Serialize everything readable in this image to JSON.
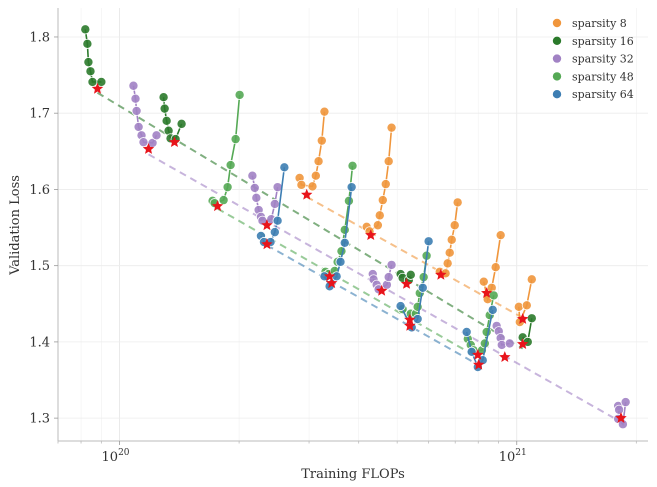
{
  "chart_data": {
    "type": "scatter",
    "title": "",
    "xlabel": "Training FLOPs",
    "ylabel": "Validation Loss",
    "x_scale": "log",
    "xlim": [
      7e+19,
      2.14e+21
    ],
    "ylim": [
      1.27,
      1.838
    ],
    "grid": true,
    "legend_placement": "top-right",
    "x_ticks": [
      {
        "value": 1e+20,
        "base": "10",
        "exp": "20"
      },
      {
        "value": 1e+21,
        "base": "10",
        "exp": "21"
      }
    ],
    "y_ticks": [
      {
        "value": 1.3,
        "label": "1.3"
      },
      {
        "value": 1.4,
        "label": "1.4"
      },
      {
        "value": 1.5,
        "label": "1.5"
      },
      {
        "value": 1.6,
        "label": "1.6"
      },
      {
        "value": 1.7,
        "label": "1.7"
      },
      {
        "value": 1.8,
        "label": "1.8"
      }
    ],
    "optimum_marker_color": "#e8141b",
    "series": [
      {
        "name": "sparsity 8",
        "color": "#f0963c",
        "sweeps": [
          {
            "points": [
              [
                2.84e+20,
                1.615
              ],
              [
                2.87e+20,
                1.606
              ],
              [
                3.06e+20,
                1.604
              ],
              [
                3.12e+20,
                1.618
              ],
              [
                3.17e+20,
                1.637
              ],
              [
                3.23e+20,
                1.664
              ],
              [
                3.28e+20,
                1.702
              ]
            ],
            "optimum": [
              2.96e+20,
              1.593
            ]
          },
          {
            "points": [
              [
                4.19e+20,
                1.551
              ],
              [
                4.26e+20,
                1.545
              ],
              [
                4.47e+20,
                1.553
              ],
              [
                4.52e+20,
                1.566
              ],
              [
                4.6e+20,
                1.586
              ],
              [
                4.68e+20,
                1.607
              ],
              [
                4.76e+20,
                1.637
              ],
              [
                4.84e+20,
                1.681
              ]
            ],
            "optimum": [
              4.29e+20,
              1.54
            ]
          },
          {
            "points": [
              [
                6.4e+20,
                1.492
              ],
              [
                6.62e+20,
                1.49
              ],
              [
                6.7e+20,
                1.503
              ],
              [
                6.78e+20,
                1.517
              ],
              [
                6.86e+20,
                1.534
              ],
              [
                6.98e+20,
                1.553
              ],
              [
                7.1e+20,
                1.583
              ]
            ],
            "optimum": [
              6.44e+20,
              1.488
            ]
          },
          {
            "points": [
              [
                8.26e+20,
                1.479
              ],
              [
                8.45e+20,
                1.456
              ],
              [
                8.65e+20,
                1.471
              ],
              [
                8.85e+20,
                1.498
              ],
              [
                9.11e+20,
                1.54
              ]
            ],
            "optimum": [
              8.4e+20,
              1.464
            ]
          },
          {
            "points": [
              [
                1.012e+21,
                1.446
              ],
              [
                1.018e+21,
                1.426
              ],
              [
                1.06e+21,
                1.448
              ],
              [
                1.091e+21,
                1.482
              ]
            ],
            "optimum": [
              1.035e+21,
              1.43
            ]
          }
        ]
      },
      {
        "name": "sparsity 16",
        "color": "#2b7a2b",
        "sweeps": [
          {
            "points": [
              [
                8.2e+19,
                1.81
              ],
              [
                8.3e+19,
                1.791
              ],
              [
                8.35e+19,
                1.767
              ],
              [
                8.45e+19,
                1.755
              ],
              [
                8.55e+19,
                1.741
              ],
              [
                9e+19,
                1.741
              ]
            ],
            "optimum": [
              8.8e+19,
              1.732
            ]
          },
          {
            "points": [
              [
                1.291e+20,
                1.721
              ],
              [
                1.299e+20,
                1.706
              ],
              [
                1.314e+20,
                1.69
              ],
              [
                1.329e+20,
                1.677
              ],
              [
                1.344e+20,
                1.667
              ],
              [
                1.384e+20,
                1.666
              ],
              [
                1.433e+20,
                1.686
              ]
            ],
            "optimum": [
              1.375e+20,
              1.662
            ]
          },
          {
            "points": [
              [
                5.1e+20,
                1.489
              ],
              [
                5.16e+20,
                1.484
              ],
              [
                5.35e+20,
                1.481
              ],
              [
                5.41e+20,
                1.488
              ]
            ],
            "optimum": [
              5.28e+20,
              1.476
            ]
          },
          {
            "points": [
              [
                1.035e+21,
                1.406
              ],
              [
                1.066e+21,
                1.4
              ],
              [
                1.091e+21,
                1.431
              ]
            ],
            "optimum": [
              1.035e+21,
              1.397
            ]
          }
        ]
      },
      {
        "name": "sparsity 32",
        "color": "#a182c4",
        "sweeps": [
          {
            "points": [
              [
                1.084e+20,
                1.736
              ],
              [
                1.097e+20,
                1.719
              ],
              [
                1.104e+20,
                1.703
              ],
              [
                1.117e+20,
                1.682
              ],
              [
                1.136e+20,
                1.671
              ],
              [
                1.149e+20,
                1.662
              ],
              [
                1.211e+20,
                1.661
              ],
              [
                1.239e+20,
                1.671
              ]
            ],
            "optimum": [
              1.183e+20,
              1.653
            ]
          },
          {
            "points": [
              [
                2.16e+20,
                1.618
              ],
              [
                2.19e+20,
                1.602
              ],
              [
                2.21e+20,
                1.589
              ],
              [
                2.24e+20,
                1.573
              ],
              [
                2.27e+20,
                1.564
              ],
              [
                2.29e+20,
                1.559
              ],
              [
                2.41e+20,
                1.561
              ],
              [
                2.46e+20,
                1.581
              ],
              [
                2.5e+20,
                1.603
              ]
            ],
            "optimum": [
              2.35e+20,
              1.553
            ]
          },
          {
            "points": [
              [
                4.34e+20,
                1.489
              ],
              [
                4.36e+20,
                1.482
              ],
              [
                4.44e+20,
                1.475
              ],
              [
                4.49e+20,
                1.469
              ],
              [
                4.71e+20,
                1.475
              ],
              [
                4.76e+20,
                1.485
              ],
              [
                4.84e+20,
                1.501
              ]
            ],
            "optimum": [
              4.57e+20,
              1.467
            ]
          },
          {
            "points": [
              [
                8.9e+20,
                1.421
              ],
              [
                9.01e+20,
                1.414
              ],
              [
                9.11e+20,
                1.405
              ],
              [
                9.17e+20,
                1.396
              ],
              [
                9.6e+20,
                1.398
              ]
            ],
            "optimum": [
              9.33e+20,
              1.38
            ]
          },
          {
            "points": [
              [
                1.8e+21,
                1.316
              ],
              [
                1.81e+21,
                1.311
              ],
              [
                1.8e+21,
                1.299
              ],
              [
                1.85e+21,
                1.292
              ],
              [
                1.88e+21,
                1.321
              ]
            ],
            "optimum": [
              1.83e+21,
              1.3
            ]
          }
        ]
      },
      {
        "name": "sparsity 48",
        "color": "#55a955",
        "sweeps": [
          {
            "points": [
              [
                1.715e+20,
                1.585
              ],
              [
                1.735e+20,
                1.582
              ],
              [
                1.828e+20,
                1.586
              ],
              [
                1.871e+20,
                1.603
              ],
              [
                1.904e+20,
                1.632
              ],
              [
                1.96e+20,
                1.666
              ],
              [
                2.006e+20,
                1.724
              ]
            ],
            "optimum": [
              1.765e+20,
              1.578
            ]
          },
          {
            "points": [
              [
                3.3e+20,
                1.492
              ],
              [
                3.36e+20,
                1.489
              ],
              [
                3.48e+20,
                1.493
              ],
              [
                3.54e+20,
                1.505
              ],
              [
                3.62e+20,
                1.519
              ],
              [
                3.69e+20,
                1.547
              ],
              [
                3.78e+20,
                1.585
              ],
              [
                3.86e+20,
                1.631
              ]
            ],
            "optimum": [
              3.38e+20,
              1.486
            ]
          },
          {
            "points": [
              [
                5.16e+20,
                1.443
              ],
              [
                5.41e+20,
                1.437
              ],
              [
                5.57e+20,
                1.437
              ],
              [
                5.63e+20,
                1.446
              ],
              [
                5.7e+20,
                1.464
              ],
              [
                5.83e+20,
                1.485
              ],
              [
                5.93e+20,
                1.513
              ]
            ],
            "optimum": [
              5.38e+20,
              1.429
            ]
          },
          {
            "points": [
              [
                7.53e+20,
                1.404
              ],
              [
                7.66e+20,
                1.396
              ],
              [
                7.79e+20,
                1.389
              ],
              [
                8.17e+20,
                1.389
              ],
              [
                8.31e+20,
                1.398
              ],
              [
                8.4e+20,
                1.413
              ],
              [
                8.55e+20,
                1.435
              ],
              [
                8.75e+20,
                1.461
              ]
            ],
            "optimum": [
              7.98e+20,
              1.383
            ]
          }
        ]
      },
      {
        "name": "sparsity 64",
        "color": "#3d7eb3",
        "sweeps": [
          {
            "points": [
              [
                2.27e+20,
                1.539
              ],
              [
                2.31e+20,
                1.531
              ],
              [
                2.4e+20,
                1.531
              ],
              [
                2.46e+20,
                1.544
              ],
              [
                2.5e+20,
                1.559
              ],
              [
                2.6e+20,
                1.629
              ]
            ],
            "optimum": [
              2.35e+20,
              1.528
            ]
          },
          {
            "points": [
              [
                3.28e+20,
                1.486
              ],
              [
                3.38e+20,
                1.473
              ],
              [
                3.52e+20,
                1.486
              ],
              [
                3.6e+20,
                1.505
              ],
              [
                3.69e+20,
                1.53
              ],
              [
                3.84e+20,
                1.603
              ]
            ],
            "optimum": [
              3.42e+20,
              1.477
            ]
          },
          {
            "points": [
              [
                5.1e+20,
                1.447
              ],
              [
                5.44e+20,
                1.419
              ],
              [
                5.63e+20,
                1.43
              ],
              [
                5.8e+20,
                1.471
              ],
              [
                6e+20,
                1.532
              ]
            ],
            "optimum": [
              5.38e+20,
              1.421
            ]
          },
          {
            "points": [
              [
                7.48e+20,
                1.413
              ],
              [
                7.7e+20,
                1.387
              ],
              [
                7.98e+20,
                1.367
              ],
              [
                8.21e+20,
                1.376
              ],
              [
                8.7e+20,
                1.442
              ]
            ],
            "optimum": [
              8.02e+20,
              1.37
            ]
          }
        ]
      }
    ]
  }
}
